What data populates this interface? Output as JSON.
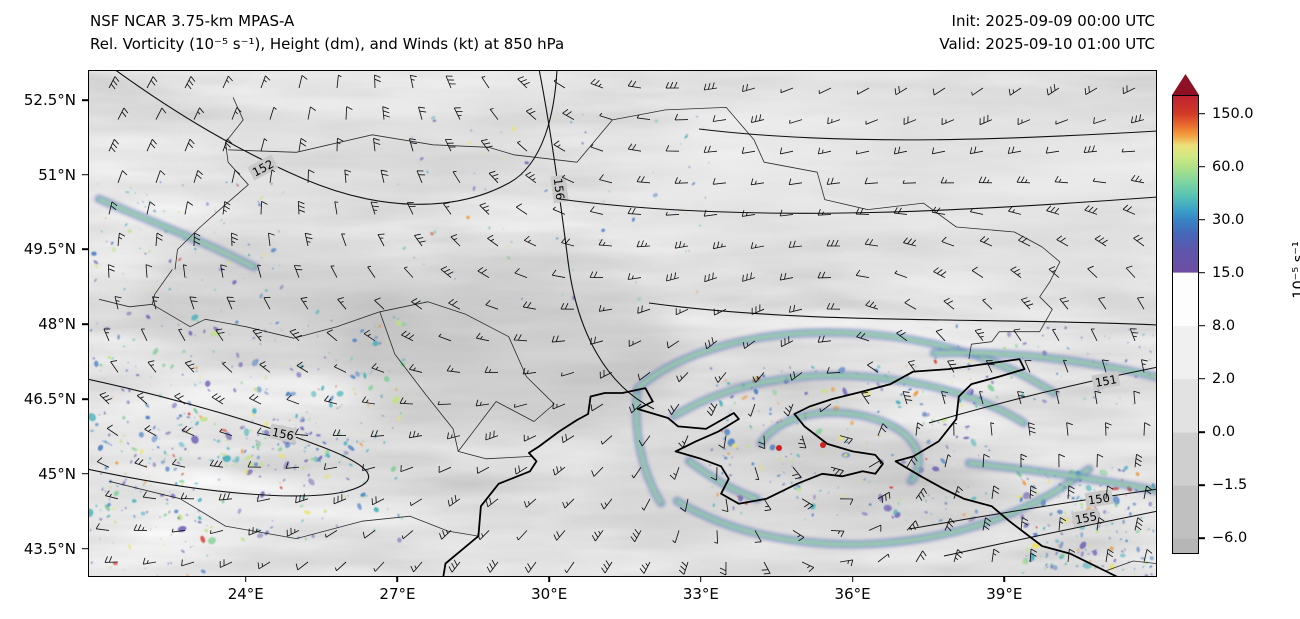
{
  "header": {
    "title_line1": "NSF NCAR 3.75-km MPAS-A",
    "title_line2": "Rel. Vorticity (10⁻⁵ s⁻¹), Height (dm), and Winds (kt) at 850 hPa",
    "init_label": "Init: 2025-09-09 00:00 UTC",
    "valid_label": "Valid: 2025-09-10 01:00 UTC"
  },
  "chart_data": {
    "type": "heatmap",
    "model": "NSF NCAR 3.75-km MPAS-A",
    "variables": [
      "Relative Vorticity (10⁻⁵ s⁻¹, shaded)",
      "Geopotential Height (dm, black contours)",
      "Winds (kt, barbs)"
    ],
    "level": "850 hPa",
    "init": "2025-09-09 00:00 UTC",
    "valid": "2025-09-10 01:00 UTC",
    "projection_extent": {
      "lon_min": 20.9,
      "lon_max": 42.0,
      "lat_min": 42.95,
      "lat_max": 53.08
    },
    "x_axis": {
      "ticks": [
        24,
        27,
        30,
        33,
        36,
        39
      ],
      "labels": [
        "24°E",
        "27°E",
        "30°E",
        "33°E",
        "36°E",
        "39°E"
      ]
    },
    "y_axis": {
      "ticks": [
        52.5,
        51,
        49.5,
        48,
        46.5,
        45,
        43.5
      ],
      "labels": [
        "52.5°N",
        "51°N",
        "49.5°N",
        "48°N",
        "46.5°N",
        "45°N",
        "43.5°N"
      ]
    },
    "colorbar": {
      "units": "10⁻⁵ s⁻¹",
      "tick_labels": [
        "150.0",
        "60.0",
        "30.0",
        "15.0",
        "8.0",
        "2.0",
        "0.0",
        "−1.5",
        "−6.0"
      ],
      "levels": [
        150.0,
        60.0,
        30.0,
        15.0,
        8.0,
        2.0,
        0.0,
        -1.5,
        -6.0
      ],
      "extend": "max",
      "arrow_color": "#8f0f24",
      "gradient_stops": [
        [
          0.0,
          "#bd2230"
        ],
        [
          0.039,
          "#d23b28"
        ],
        [
          0.062,
          "#e8672c"
        ],
        [
          0.085,
          "#f29d3d"
        ],
        [
          0.108,
          "#ecdf7a"
        ],
        [
          0.132,
          "#cfe982"
        ],
        [
          0.155,
          "#b2e186"
        ],
        [
          0.185,
          "#84d69e"
        ],
        [
          0.22,
          "#55c2b4"
        ],
        [
          0.25,
          "#3b9fc8"
        ],
        [
          0.271,
          "#3884c5"
        ],
        [
          0.3,
          "#4468ba"
        ],
        [
          0.34,
          "#5f55ab"
        ],
        [
          0.386,
          "#6e4ea3"
        ],
        [
          0.387,
          "#fdfdfd"
        ],
        [
          0.503,
          "#fdfdfd"
        ],
        [
          0.504,
          "#f0f0f0"
        ],
        [
          0.619,
          "#f0f0f0"
        ],
        [
          0.62,
          "#e2e2e2"
        ],
        [
          0.736,
          "#e2e2e2"
        ],
        [
          0.737,
          "#cfcfcf"
        ],
        [
          0.852,
          "#cfcfcf"
        ],
        [
          0.853,
          "#c0c0c0"
        ],
        [
          0.968,
          "#c0c0c0"
        ],
        [
          0.969,
          "#b6b6b6"
        ],
        [
          1.0,
          "#b6b6b6"
        ]
      ]
    },
    "height_contour_labels_dm": [
      "152",
      "156",
      "156",
      "151",
      "150",
      "155"
    ],
    "map_overlays": {
      "coastlines": true,
      "country_borders": true,
      "wind_barbs": true
    },
    "features": [
      {
        "region": "Carpathians (22–27°E, 44.5–47.5°N)",
        "description": "Dense field of small-scale positive vorticity maxima (15 to >150 ×10⁻⁵ s⁻¹)"
      },
      {
        "region": "SW Ukraine / SE Poland (~22–25°E, ~49.5°N)",
        "description": "Elongated NW–SE vorticity filament"
      },
      {
        "region": "Sea of Azov / Crimea low (32–40°E, 44.5–48°N)",
        "description": "Curved spiral vorticity bands wrapping a cyclone, embedded extreme maxima (red specks)"
      },
      {
        "region": "NE Black Sea coast / Caucasus (38–42°E, 43–47.5°N)",
        "description": "Coast-parallel filaments and terrain-induced vorticity speckle"
      }
    ]
  }
}
